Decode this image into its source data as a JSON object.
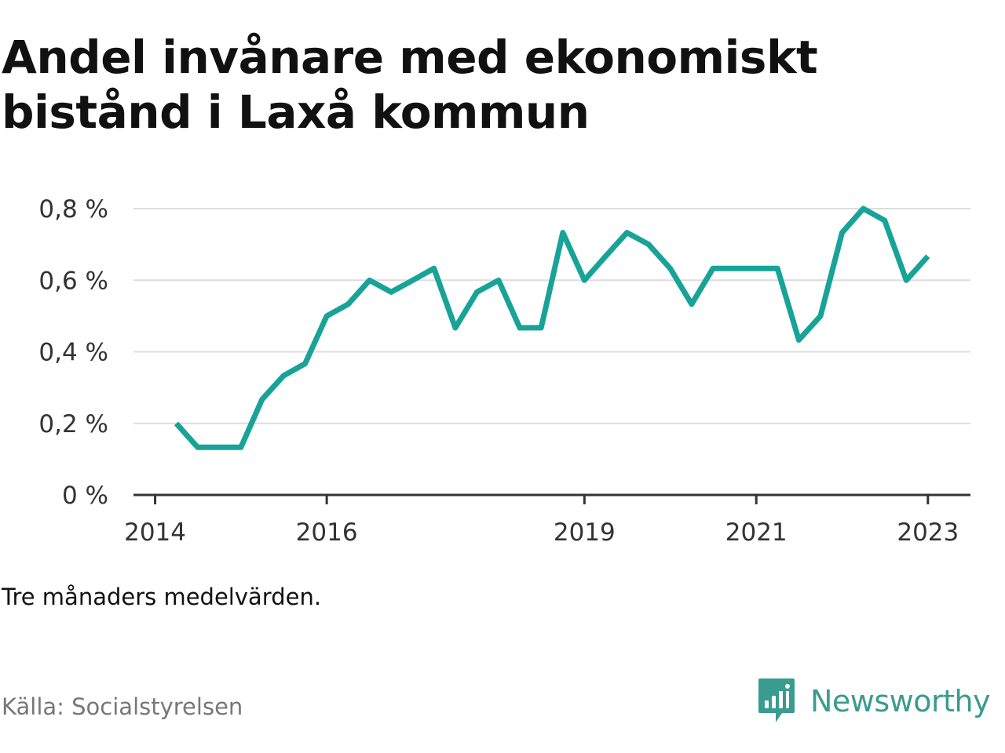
{
  "header": {
    "title": "Andel invånare med ekonomiskt bistånd i Laxå kommun"
  },
  "footer": {
    "note": "Tre månaders medelvärden.",
    "source": "Källa: Socialstyrelsen",
    "brand": "Newsworthy"
  },
  "colors": {
    "line": "#17a398",
    "grid": "#dddddd",
    "axis": "#333333",
    "brand": "#3a9b8f"
  },
  "chart_data": {
    "type": "line",
    "title": "Andel invånare med ekonomiskt bistånd i Laxå kommun",
    "xlabel": "",
    "ylabel": "",
    "ylim": [
      0,
      0.8
    ],
    "grid": true,
    "y_ticks": [
      0,
      0.2,
      0.4,
      0.6,
      0.8
    ],
    "y_tick_labels": [
      "0 %",
      "0,2 %",
      "0,4 %",
      "0,6 %",
      "0,8 %"
    ],
    "x_ticks": [
      "2014-01-01",
      "2016-01-01",
      "2019-01-01",
      "2021-01-01",
      "2023-01-01"
    ],
    "x_tick_labels": [
      "2014",
      "2016",
      "2019",
      "2021",
      "2023"
    ],
    "series": [
      {
        "x": [
          "2014-04-01",
          "2014-07-01",
          "2014-10-01",
          "2015-01-01",
          "2015-04-01",
          "2015-07-01",
          "2015-10-01",
          "2016-01-01",
          "2016-04-01",
          "2016-07-01",
          "2016-10-01",
          "2017-01-01",
          "2017-04-01",
          "2017-07-01",
          "2017-10-01",
          "2018-01-01",
          "2018-04-01",
          "2018-07-01",
          "2018-10-01",
          "2019-01-01",
          "2019-04-01",
          "2019-07-01",
          "2019-10-01",
          "2020-01-01",
          "2020-04-01",
          "2020-07-01",
          "2020-10-01",
          "2021-01-01",
          "2021-04-01",
          "2021-07-01",
          "2021-10-01",
          "2022-01-01",
          "2022-04-01",
          "2022-07-01",
          "2022-10-01",
          "2023-01-01"
        ],
        "values": [
          0.2,
          0.133,
          0.133,
          0.133,
          0.267,
          0.333,
          0.367,
          0.5,
          0.533,
          0.6,
          0.567,
          0.6,
          0.633,
          0.467,
          0.567,
          0.6,
          0.467,
          0.467,
          0.733,
          0.6,
          0.667,
          0.733,
          0.7,
          0.633,
          0.533,
          0.633,
          0.633,
          0.633,
          0.633,
          0.433,
          0.5,
          0.733,
          0.8,
          0.767,
          0.6,
          0.667
        ]
      }
    ]
  }
}
